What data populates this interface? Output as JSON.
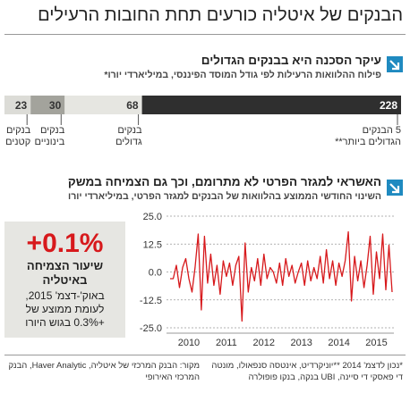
{
  "header": {
    "title": "הבנקים של איטליה כורעים תחת החובות הרעילים"
  },
  "sections": [
    {
      "heading": "עיקר הסכנה היא בבנקים הגדולים",
      "subheading": "פילוח ההלוואות הרעילות לפי גודל המוסד הפיננסי, במיליארדי יורו*"
    },
    {
      "heading": "האשראי למגזר הפרטי לא מתרומם, וכך גם הצמיחה במשק",
      "subheading": "השינוי החודשי הממוצע בהלוואות של הבנקים למגזר הפרטי, במיליארדי יורו"
    }
  ],
  "callout": {
    "value": "+0.1%",
    "label": "שיעור הצמיחה באיטליה",
    "note": "באוק'-דצמ' 2015, לעומת ממוצע של +0.3% בגוש היורו"
  },
  "footer": {
    "notes": "*נכון לדצמ' 2014 **יוניקרדיט, אינטסה סנפאולו, מונטה די פאסקי די סיינה, UBI בנקה, בנקו פופולרה",
    "source": "מקור: הבנק המרכזי של איטליה, Haver Analytic, הבנק המרכזי האירופי"
  },
  "chart_data": [
    {
      "type": "bar",
      "stacked": true,
      "categories": [
        "בנקים קטנים",
        "בנקים בינוניים",
        "בנקים גדולים",
        "5 הבנקים הגדולים ביותר**"
      ],
      "values": [
        23,
        30,
        68,
        228
      ],
      "colors": [
        "#dcdcd7",
        "#a3a39c",
        "#e6e6e1",
        "#2f2f2f"
      ]
    },
    {
      "type": "line",
      "color": "#d7191c",
      "grid": true,
      "ylim": [
        -25,
        25
      ],
      "yticks": [
        {
          "value": 25,
          "label": "25.0"
        },
        {
          "value": 12.5,
          "label": "12.5"
        },
        {
          "value": 0,
          "label": "0.0"
        },
        {
          "value": -12.5,
          "label": "-12.5"
        },
        {
          "value": -25,
          "label": "-25.0"
        }
      ],
      "categories": [
        null,
        null,
        null,
        null,
        null,
        null,
        "2010",
        null,
        null,
        null,
        null,
        null,
        null,
        null,
        null,
        null,
        null,
        null,
        "2011",
        null,
        null,
        null,
        null,
        null,
        null,
        null,
        null,
        null,
        null,
        null,
        "2012",
        null,
        null,
        null,
        null,
        null,
        null,
        null,
        null,
        null,
        null,
        null,
        "2013",
        null,
        null,
        null,
        null,
        null,
        null,
        null,
        null,
        null,
        null,
        null,
        "2014",
        null,
        null,
        null,
        null,
        null,
        null,
        null,
        null,
        null,
        null,
        null,
        "2015",
        null,
        null,
        null,
        null,
        null
      ],
      "values": [
        -3,
        -3,
        3,
        -7,
        2,
        6,
        -3,
        -9,
        2,
        17,
        -17,
        16,
        -5,
        8,
        -6,
        3,
        -10,
        5,
        -2,
        4,
        -6,
        3,
        7,
        -22,
        13,
        -9,
        2,
        -4,
        6,
        -6,
        8,
        -3,
        2,
        0,
        -5,
        4,
        -6,
        6,
        -2,
        3,
        -5,
        0,
        4,
        -6,
        5,
        -4,
        2,
        -3,
        7,
        -5,
        10,
        -3,
        5,
        -6,
        4,
        -2,
        5,
        18,
        -13,
        7,
        -4,
        5,
        -7,
        3,
        16,
        -10,
        9,
        -3,
        17,
        -8,
        12,
        -9
      ]
    }
  ]
}
